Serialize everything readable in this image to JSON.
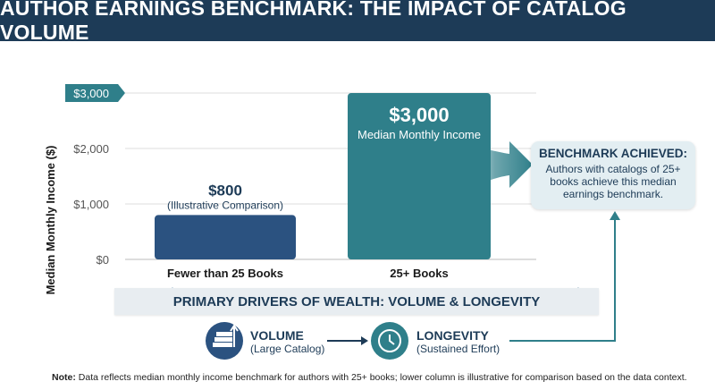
{
  "header": {
    "title": "AUTHOR EARNINGS BENCHMARK: THE IMPACT OF CATALOG VOLUME"
  },
  "chart_data": {
    "type": "bar",
    "categories": [
      "Fewer than 25 Books",
      "25+ Books"
    ],
    "values": [
      800,
      3000
    ],
    "value_labels": [
      "$800",
      "$3,000"
    ],
    "value_sublabels": [
      "(Illustrative Comparison)",
      "Median Monthly Income"
    ],
    "ylabel": "Median Monthly Income ($)",
    "yticks": [
      0,
      1000,
      2000,
      3000
    ],
    "ytick_labels": [
      "$0",
      "$1,000",
      "$2,000",
      "$3,000"
    ],
    "ylim": [
      0,
      3000
    ],
    "grid": true,
    "colors": [
      "#2b5280",
      "#2f7f8a"
    ]
  },
  "callout": {
    "title": "BENCHMARK ACHIEVED:",
    "body": "Authors with catalogs of 25+ books achieve this median earnings benchmark."
  },
  "drivers": {
    "title": "PRIMARY DRIVERS OF WEALTH: VOLUME & LONGEVITY",
    "items": [
      {
        "title": "VOLUME",
        "subtitle": "(Large Catalog)",
        "icon": "books-icon"
      },
      {
        "title": "LONGEVITY",
        "subtitle": "(Sustained Effort)",
        "icon": "clock-icon"
      }
    ]
  },
  "note": {
    "label": "Note:",
    "text": "Data reflects median monthly income benchmark for authors with 25+ books; lower column is illustrative for comparison based on the data context."
  },
  "colors": {
    "navy": "#1d3b57",
    "teal": "#2f7f8a",
    "blue": "#2b5280",
    "callout_bg": "#e3eef2"
  }
}
